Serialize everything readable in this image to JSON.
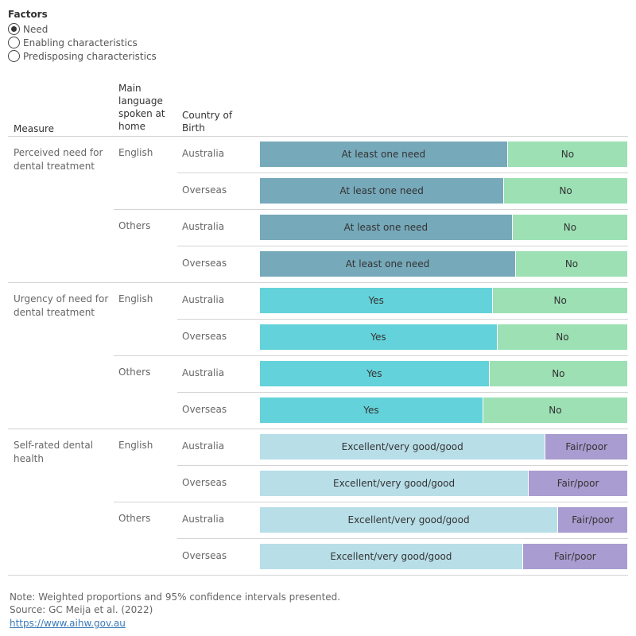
{
  "filter": {
    "title": "Factors",
    "options": [
      {
        "label": "Need",
        "selected": true
      },
      {
        "label": "Enabling characteristics",
        "selected": false
      },
      {
        "label": "Predisposing characteristics",
        "selected": false
      }
    ]
  },
  "headers": {
    "measure": "Measure",
    "language": [
      "Main",
      "language",
      "spoken at",
      "home"
    ],
    "country": [
      "Country of",
      "Birth"
    ]
  },
  "colors": {
    "at_least_one_need": "#76a9ba",
    "no": "#9ce0b4",
    "yes": "#64d2da",
    "excellent": "#b8dee8",
    "fair_poor": "#a99cd0"
  },
  "chart_data": {
    "type": "bar",
    "stacked": true,
    "orientation": "horizontal",
    "value_units": "proportion of respondents",
    "groups": [
      {
        "measure": "Perceived need for dental treatment",
        "segments": [
          "At least one need",
          "No"
        ],
        "colors": [
          "#76a9ba",
          "#9ce0b4"
        ],
        "rows": [
          {
            "language": "English",
            "country": "Australia",
            "values": [
              0.675,
              0.325
            ]
          },
          {
            "language": "English",
            "country": "Overseas",
            "values": [
              0.665,
              0.335
            ]
          },
          {
            "language": "Others",
            "country": "Australia",
            "values": [
              0.688,
              0.312
            ]
          },
          {
            "language": "Others",
            "country": "Overseas",
            "values": [
              0.697,
              0.303
            ]
          }
        ]
      },
      {
        "measure": "Urgency of need for dental treatment",
        "segments": [
          "Yes",
          "No"
        ],
        "colors": [
          "#64d2da",
          "#9ce0b4"
        ],
        "rows": [
          {
            "language": "English",
            "country": "Australia",
            "values": [
              0.635,
              0.365
            ]
          },
          {
            "language": "English",
            "country": "Overseas",
            "values": [
              0.647,
              0.353
            ]
          },
          {
            "language": "Others",
            "country": "Australia",
            "values": [
              0.625,
              0.375
            ]
          },
          {
            "language": "Others",
            "country": "Overseas",
            "values": [
              0.608,
              0.392
            ]
          }
        ]
      },
      {
        "measure": "Self-rated dental health",
        "segments": [
          "Excellent/very good/good",
          "Fair/poor"
        ],
        "colors": [
          "#b8dee8",
          "#a99cd0"
        ],
        "rows": [
          {
            "language": "English",
            "country": "Australia",
            "values": [
              0.778,
              0.222
            ]
          },
          {
            "language": "English",
            "country": "Overseas",
            "values": [
              0.732,
              0.268
            ]
          },
          {
            "language": "Others",
            "country": "Australia",
            "values": [
              0.812,
              0.188
            ]
          },
          {
            "language": "Others",
            "country": "Overseas",
            "values": [
              0.716,
              0.284
            ]
          }
        ]
      }
    ]
  },
  "footer": {
    "note": "Note: Weighted proportions and 95% confidence intervals presented.",
    "source": "Source: GC Meija et al. (2022)",
    "link": "https://www.aihw.gov.au"
  }
}
